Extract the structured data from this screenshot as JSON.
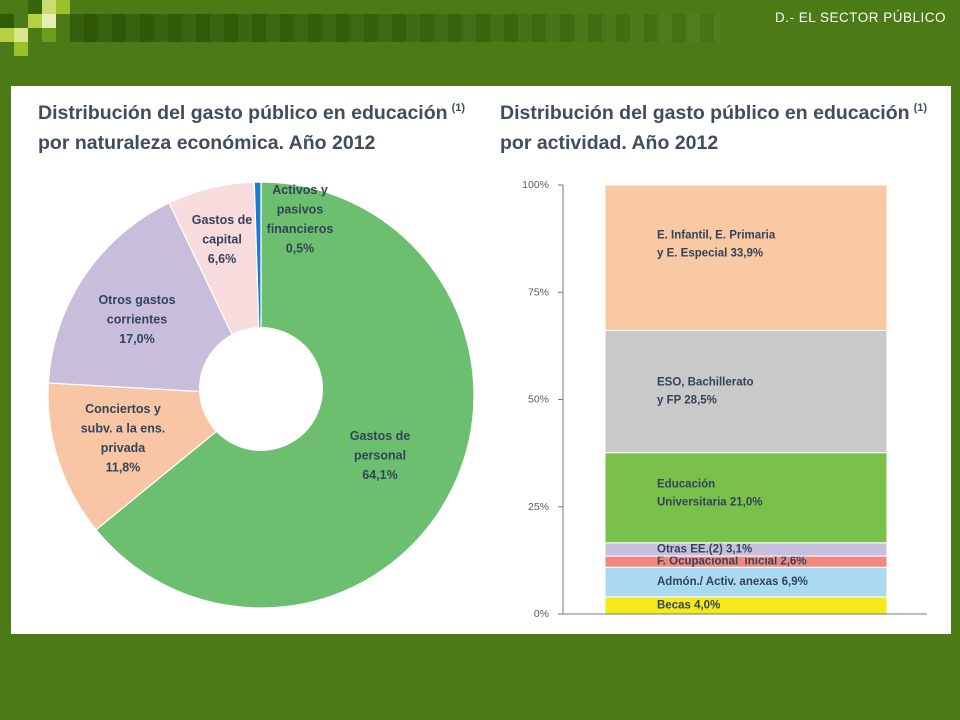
{
  "colors": {
    "background": "#4c7a16",
    "panel": "#ffffff",
    "title_text": "#414d5c",
    "label_text": "#33445a",
    "axis_text": "#5c5c5c",
    "axis_line": "#7a7a7a"
  },
  "header": {
    "section_title": "D.- EL SECTOR PÚBLICO"
  },
  "chart_data": [
    {
      "type": "pie",
      "subtype": "donut",
      "title_line1": "Distribución del gasto público en educación",
      "title_sup": "(1)",
      "title_line2": "por naturaleza económica. Año 2012",
      "slices": [
        {
          "label": [
            "Gastos de",
            "personal",
            "64,1%"
          ],
          "value": 64.1,
          "color": "#6cbf6f"
        },
        {
          "label": [
            "Conciertos y",
            "subv. a la ens.",
            "privada",
            "11,8%"
          ],
          "value": 11.8,
          "color": "#f9c6a5"
        },
        {
          "label": [
            "Otros gastos",
            "corrientes",
            "17,0%"
          ],
          "value": 17.0,
          "color": "#c8bedb"
        },
        {
          "label": [
            "Gastos de",
            "capital",
            "6,6%"
          ],
          "value": 6.6,
          "color": "#f8dbdc"
        },
        {
          "label": [
            "Activos y",
            "pasivos",
            "financieros",
            "0,5%"
          ],
          "value": 0.5,
          "color": "#1b7bd1"
        }
      ]
    },
    {
      "type": "bar",
      "stacked": true,
      "normalized_percent": true,
      "title_line1": "Distribución del gasto público en educación",
      "title_sup": "(1)",
      "title_line2": "por actividad. Año 2012",
      "ylim": [
        0,
        100
      ],
      "y_ticks": [
        {
          "value": 100,
          "label": "100%"
        },
        {
          "value": 75,
          "label": "75%"
        },
        {
          "value": 50,
          "label": "50%"
        },
        {
          "value": 25,
          "label": "25%"
        },
        {
          "value": 0,
          "label": "0%"
        }
      ],
      "segments": [
        {
          "label": [
            "Becas 4,0%"
          ],
          "value": 4.0,
          "color": "#f6e91a"
        },
        {
          "label": [
            "Admón./ Activ. anexas 6,9%"
          ],
          "value": 6.9,
          "color": "#a9daf2"
        },
        {
          "label": [
            "F. Ocupacional  inicial 2,6%"
          ],
          "value": 2.6,
          "color": "#f2877e"
        },
        {
          "label": [
            "Otras EE.(2) 3,1%"
          ],
          "value": 3.1,
          "color": "#c8bfe0"
        },
        {
          "label": [
            "Educación",
            "Universitaria 21,0%"
          ],
          "value": 21.0,
          "color": "#79c14b"
        },
        {
          "label": [
            "ESO, Bachillerato",
            "y FP 28,5%"
          ],
          "value": 28.5,
          "color": "#c9c9c9"
        },
        {
          "label": [
            "E. Infantil, E. Primaria",
            "y E. Especial 33,9%"
          ],
          "value": 33.9,
          "color": "#f9c9a3"
        }
      ]
    }
  ]
}
